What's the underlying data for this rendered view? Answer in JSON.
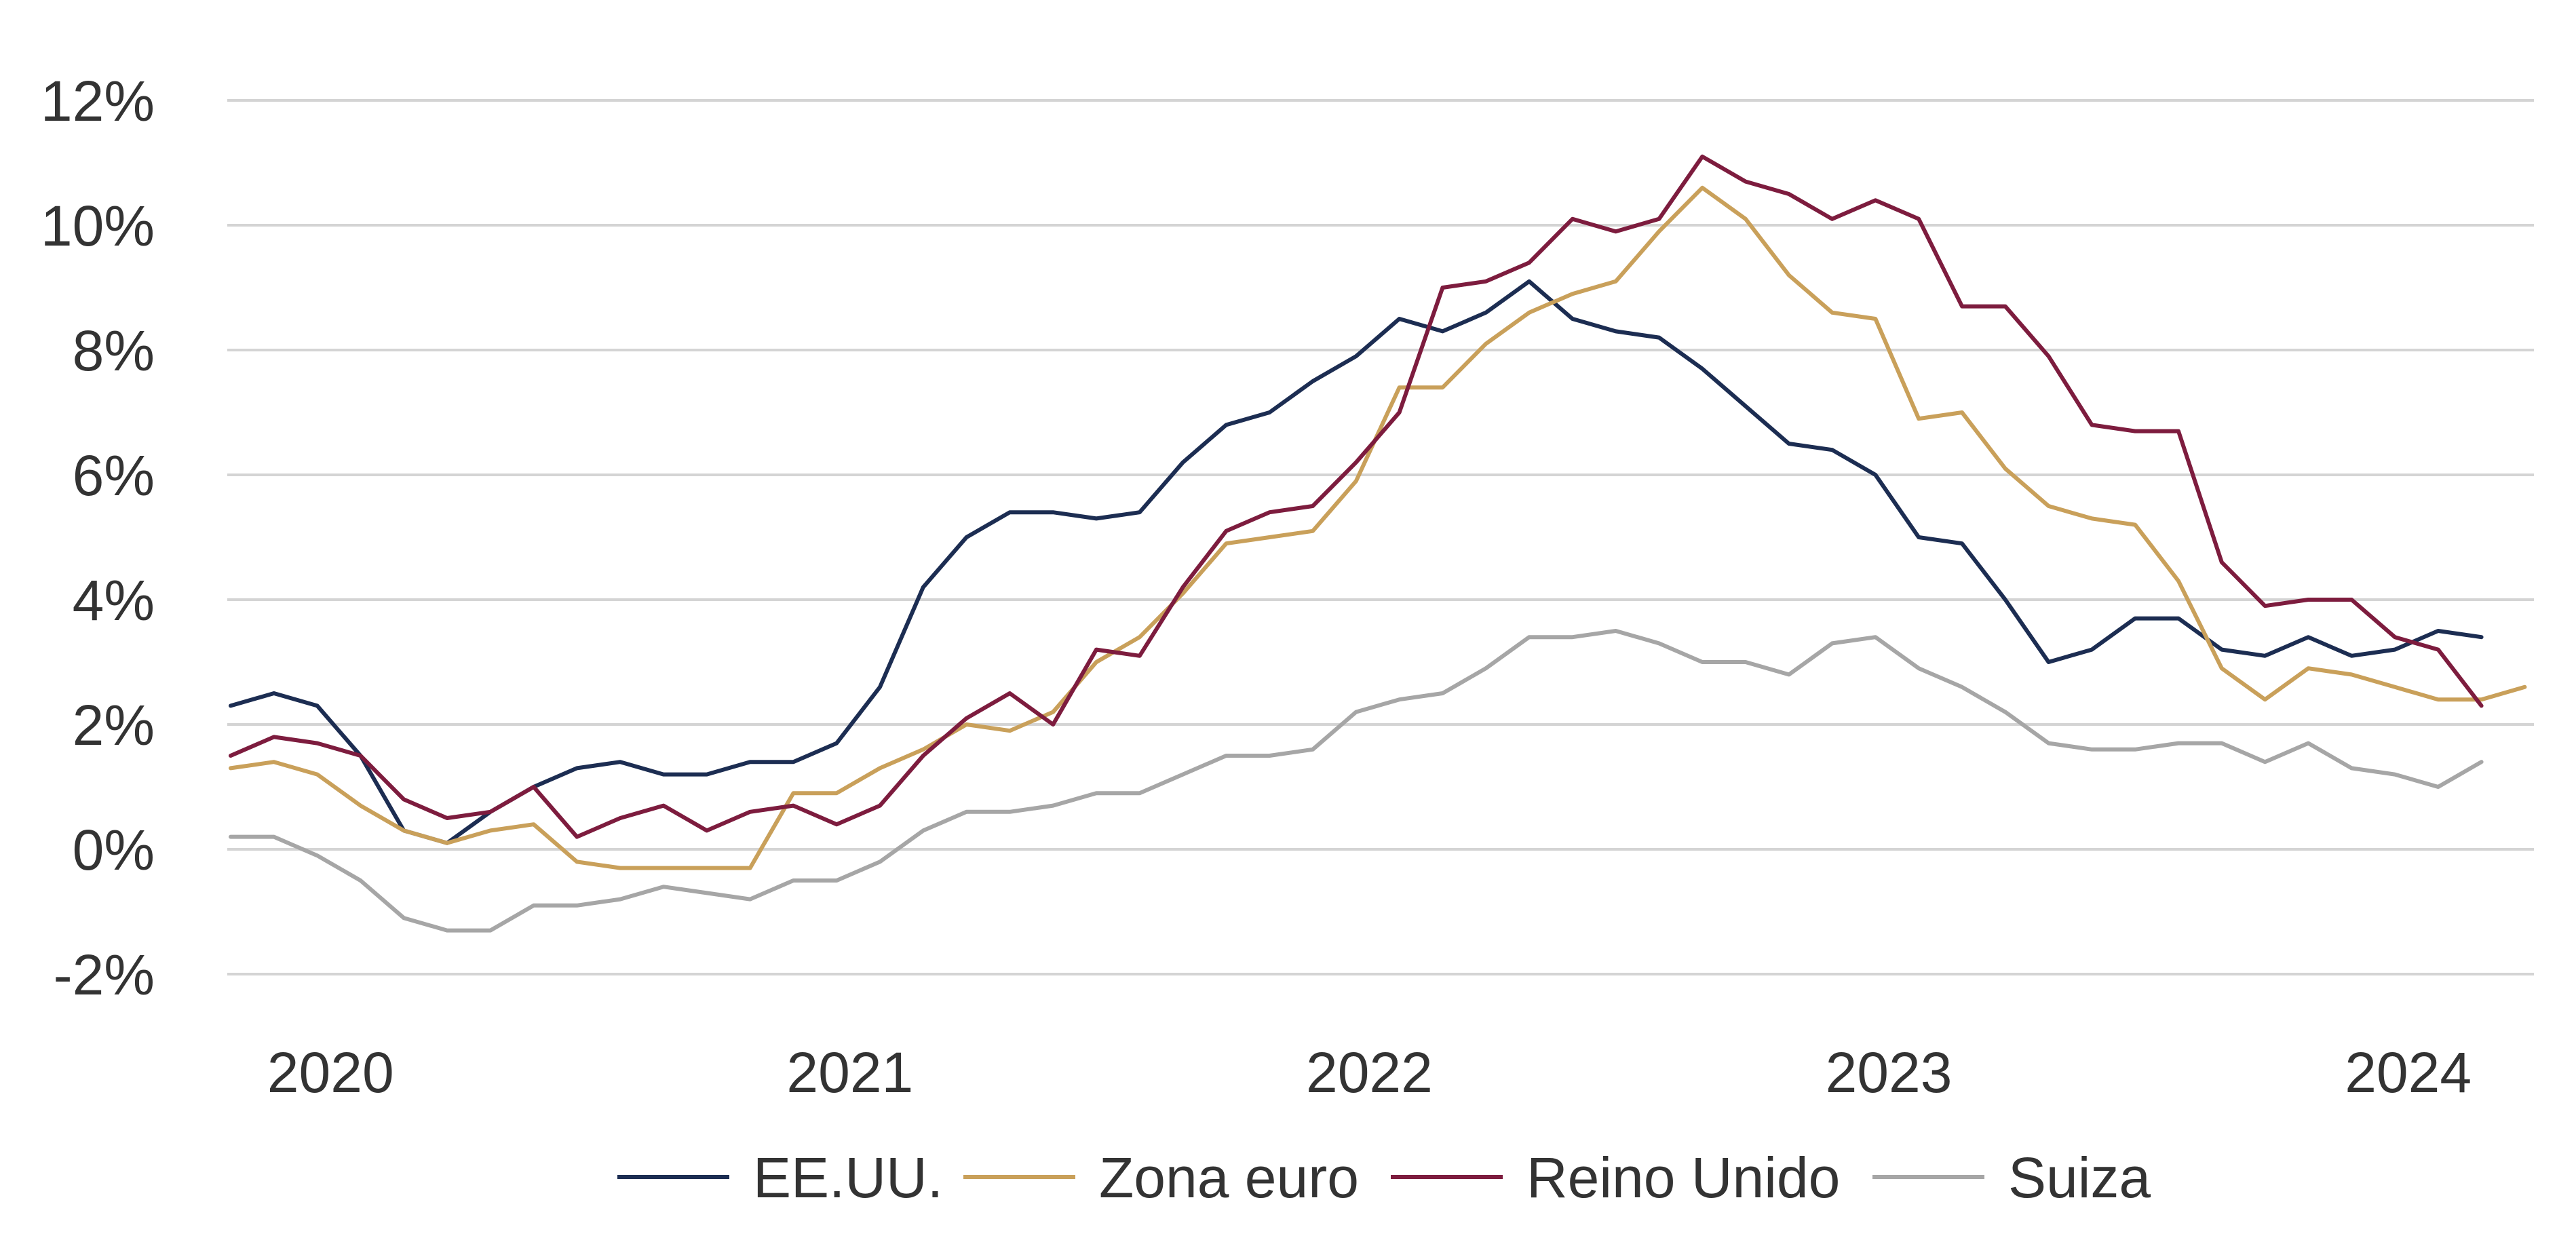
{
  "chart_data": {
    "type": "line",
    "title": "",
    "xlabel": "",
    "ylabel": "",
    "ylim": [
      -2,
      12
    ],
    "y_ticks": [
      {
        "value": 12,
        "label": "12%"
      },
      {
        "value": 10,
        "label": "10%"
      },
      {
        "value": 8,
        "label": "8%"
      },
      {
        "value": 6,
        "label": "6%"
      },
      {
        "value": 4,
        "label": "4%"
      },
      {
        "value": 2,
        "label": "2%"
      },
      {
        "value": 0,
        "label": "0%"
      },
      {
        "value": -2,
        "label": "-2%"
      }
    ],
    "x_ticks": [
      {
        "value": "2020-01",
        "label": "2020"
      },
      {
        "value": "2021-01",
        "label": "2021"
      },
      {
        "value": "2022-01",
        "label": "2022"
      },
      {
        "value": "2023-01",
        "label": "2023"
      },
      {
        "value": "2024-01",
        "label": "2024"
      }
    ],
    "xlim": [
      "2019-12",
      "2024-05"
    ],
    "grid": "horizontal",
    "legend_position": "bottom",
    "series": [
      {
        "name": "EE.UU.",
        "color": "#1c2d52",
        "start": "2019-12",
        "values": [
          2.3,
          2.5,
          2.3,
          1.5,
          0.3,
          0.1,
          0.6,
          1.0,
          1.3,
          1.4,
          1.2,
          1.2,
          1.4,
          1.4,
          1.7,
          2.6,
          4.2,
          5.0,
          5.4,
          5.4,
          5.3,
          5.4,
          6.2,
          6.8,
          7.0,
          7.5,
          7.9,
          8.5,
          8.3,
          8.6,
          9.1,
          8.5,
          8.3,
          8.2,
          7.7,
          7.1,
          6.5,
          6.4,
          6.0,
          5.0,
          4.9,
          4.0,
          3.0,
          3.2,
          3.7,
          3.7,
          3.2,
          3.1,
          3.4,
          3.1,
          3.2,
          3.5,
          3.4
        ]
      },
      {
        "name": "Zona euro",
        "color": "#c9a05a",
        "start": "2019-12",
        "values": [
          1.3,
          1.4,
          1.2,
          0.7,
          0.3,
          0.1,
          0.3,
          0.4,
          -0.2,
          -0.3,
          -0.3,
          -0.3,
          -0.3,
          0.9,
          0.9,
          1.3,
          1.6,
          2.0,
          1.9,
          2.2,
          3.0,
          3.4,
          4.1,
          4.9,
          5.0,
          5.1,
          5.9,
          7.4,
          7.4,
          8.1,
          8.6,
          8.9,
          9.1,
          9.9,
          10.6,
          10.1,
          9.2,
          8.6,
          8.5,
          6.9,
          7.0,
          6.1,
          5.5,
          5.3,
          5.2,
          4.3,
          2.9,
          2.4,
          2.9,
          2.8,
          2.6,
          2.4,
          2.4,
          2.6
        ]
      },
      {
        "name": "Reino Unido",
        "color": "#7d1c3e",
        "start": "2019-12",
        "values": [
          1.5,
          1.8,
          1.7,
          1.5,
          0.8,
          0.5,
          0.6,
          1.0,
          0.2,
          0.5,
          0.7,
          0.3,
          0.6,
          0.7,
          0.4,
          0.7,
          1.5,
          2.1,
          2.5,
          2.0,
          3.2,
          3.1,
          4.2,
          5.1,
          5.4,
          5.5,
          6.2,
          7.0,
          9.0,
          9.1,
          9.4,
          10.1,
          9.9,
          10.1,
          11.1,
          10.7,
          10.5,
          10.1,
          10.4,
          10.1,
          8.7,
          8.7,
          7.9,
          6.8,
          6.7,
          6.7,
          4.6,
          3.9,
          4.0,
          4.0,
          3.4,
          3.2,
          2.3
        ]
      },
      {
        "name": "Suiza",
        "color": "#a6a6a6",
        "start": "2019-12",
        "values": [
          0.2,
          0.2,
          -0.1,
          -0.5,
          -1.1,
          -1.3,
          -1.3,
          -0.9,
          -0.9,
          -0.8,
          -0.6,
          -0.7,
          -0.8,
          -0.5,
          -0.5,
          -0.2,
          0.3,
          0.6,
          0.6,
          0.7,
          0.9,
          0.9,
          1.2,
          1.5,
          1.5,
          1.6,
          2.2,
          2.4,
          2.5,
          2.9,
          3.4,
          3.4,
          3.5,
          3.3,
          3.0,
          3.0,
          2.8,
          3.3,
          3.4,
          2.9,
          2.6,
          2.2,
          1.7,
          1.6,
          1.6,
          1.7,
          1.7,
          1.4,
          1.7,
          1.3,
          1.2,
          1.0,
          1.4
        ]
      }
    ]
  }
}
